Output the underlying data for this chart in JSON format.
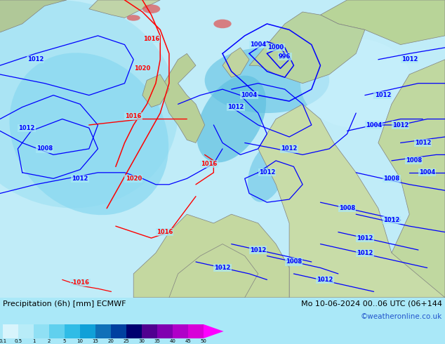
{
  "title_left": "Precipitation (6h) [mm] ECMWF",
  "title_right": "Mo 10-06-2024 00..06 UTC (06+144",
  "credit": "©weatheronline.co.uk",
  "colorbar_labels": [
    "0.1",
    "0.5",
    "1",
    "2",
    "5",
    "10",
    "15",
    "20",
    "25",
    "30",
    "35",
    "40",
    "45",
    "50"
  ],
  "colorbar_colors": [
    "#d8f4fc",
    "#b8ecf8",
    "#90e0f4",
    "#60d0ee",
    "#30bce6",
    "#10a0d8",
    "#1070b8",
    "#0040a0",
    "#000070",
    "#500090",
    "#8000b0",
    "#b000c8",
    "#d800d8",
    "#ff00ff"
  ],
  "ocean_color": "#aae8f8",
  "land_color": "#c8dba0",
  "precip_light": "#c0f0ff",
  "precip_mid": "#80d8f0",
  "precip_strong": "#40b8e0",
  "bottom_bg": "#d0d0d0",
  "fig_width": 6.34,
  "fig_height": 4.9,
  "dpi": 100
}
